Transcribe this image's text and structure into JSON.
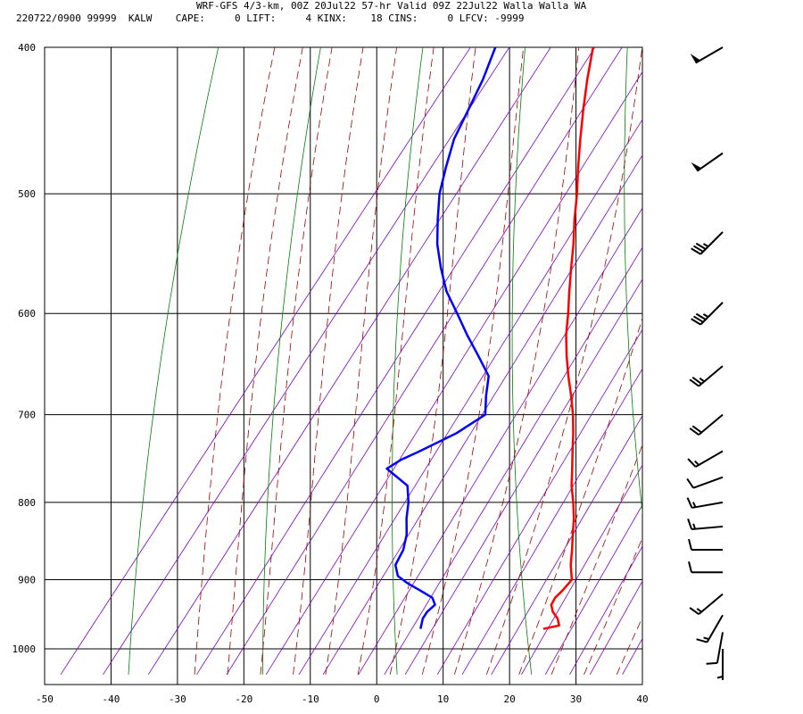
{
  "header": {
    "title": "WRF-GFS 4/3-km, 00Z 20Jul22 57-hr Valid 09Z 22Jul22 Walla Walla WA",
    "subtitle": "220722/0900 99999  KALW    CAPE:     0 LIFT:     4 KINX:    18 CINS:     0 LFCV: -9999"
  },
  "chart_data": {
    "type": "line",
    "diagram": "skew-T log-P sounding",
    "xlabel": "",
    "ylabel": "",
    "xlim": [
      -50,
      40
    ],
    "ylim": [
      1040,
      400
    ],
    "x_ticks": [
      -50,
      -40,
      -30,
      -20,
      -10,
      0,
      10,
      20,
      30,
      40
    ],
    "y_ticks": [
      400,
      500,
      600,
      700,
      800,
      900,
      1000
    ],
    "grid": true,
    "colors": {
      "temperature": "#ff0000",
      "dewpoint": "#0000ff",
      "dry_adiabat": "#008000",
      "moist_adiabat": "#a00000",
      "mixing_ratio": "#8000c0",
      "grid": "#000000"
    },
    "series": [
      {
        "key": "temperature",
        "p": [
          970,
          965,
          955,
          945,
          935,
          925,
          915,
          900,
          880,
          860,
          840,
          820,
          800,
          780,
          760,
          740,
          720,
          700,
          680,
          660,
          640,
          620,
          600,
          580,
          560,
          540,
          520,
          500,
          480,
          460,
          440,
          420,
          400
        ],
        "t": [
          20.0,
          22.0,
          21.0,
          19.5,
          18.5,
          18.3,
          18.6,
          18.8,
          17.0,
          15.5,
          13.9,
          12.3,
          10.4,
          8.3,
          6.5,
          4.6,
          2.7,
          0.6,
          -1.8,
          -4.4,
          -6.9,
          -9.3,
          -11.4,
          -13.7,
          -16.0,
          -18.3,
          -20.9,
          -23.4,
          -26.2,
          -29.0,
          -31.8,
          -34.6,
          -37.3
        ]
      },
      {
        "key": "dewpoint",
        "p": [
          970,
          955,
          945,
          935,
          925,
          915,
          905,
          895,
          880,
          860,
          840,
          820,
          800,
          780,
          760,
          750,
          740,
          720,
          700,
          680,
          660,
          640,
          620,
          600,
          580,
          560,
          540,
          520,
          500,
          480,
          460,
          440,
          420,
          400
        ],
        "t": [
          1.5,
          0.7,
          0.6,
          1.0,
          -0.2,
          -2.8,
          -5.5,
          -7.8,
          -9.4,
          -9.9,
          -11.1,
          -12.9,
          -14.4,
          -16.4,
          -21.4,
          -20.3,
          -18.4,
          -14.9,
          -12.6,
          -14.6,
          -16.4,
          -20.2,
          -24.2,
          -28.1,
          -32.2,
          -35.6,
          -38.8,
          -41.5,
          -44.1,
          -46.1,
          -48.0,
          -49.1,
          -50.3,
          -52.0
        ]
      }
    ],
    "wind_barbs": [
      {
        "p": 400,
        "dir": 240,
        "kt": 50
      },
      {
        "p": 470,
        "dir": 235,
        "kt": 50
      },
      {
        "p": 530,
        "dir": 225,
        "kt": 35
      },
      {
        "p": 590,
        "dir": 225,
        "kt": 35
      },
      {
        "p": 650,
        "dir": 230,
        "kt": 25
      },
      {
        "p": 700,
        "dir": 230,
        "kt": 20
      },
      {
        "p": 740,
        "dir": 240,
        "kt": 15
      },
      {
        "p": 770,
        "dir": 250,
        "kt": 10
      },
      {
        "p": 800,
        "dir": 260,
        "kt": 15
      },
      {
        "p": 830,
        "dir": 265,
        "kt": 15
      },
      {
        "p": 860,
        "dir": 270,
        "kt": 10
      },
      {
        "p": 890,
        "dir": 270,
        "kt": 10
      },
      {
        "p": 920,
        "dir": 230,
        "kt": 15
      },
      {
        "p": 950,
        "dir": 210,
        "kt": 15
      },
      {
        "p": 975,
        "dir": 190,
        "kt": 10
      },
      {
        "p": 1000,
        "dir": 180,
        "kt": 5
      }
    ]
  }
}
